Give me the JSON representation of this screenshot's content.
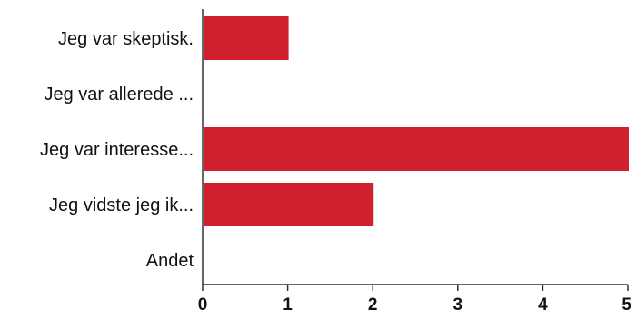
{
  "chart_data": {
    "type": "bar",
    "orientation": "horizontal",
    "categories": [
      "Jeg var skeptisk.",
      "Jeg var allerede ...",
      "Jeg var interesse...",
      "Jeg vidste jeg ik...",
      "Andet"
    ],
    "values": [
      1,
      0,
      5,
      2,
      0
    ],
    "xlim": [
      0,
      5
    ],
    "xticks": [
      "0",
      "1",
      "2",
      "3",
      "4",
      "5"
    ],
    "title": "",
    "xlabel": "",
    "ylabel": "",
    "grid": false,
    "legend": "none",
    "bar_color": "#d0202e",
    "axis_color": "#333333"
  }
}
